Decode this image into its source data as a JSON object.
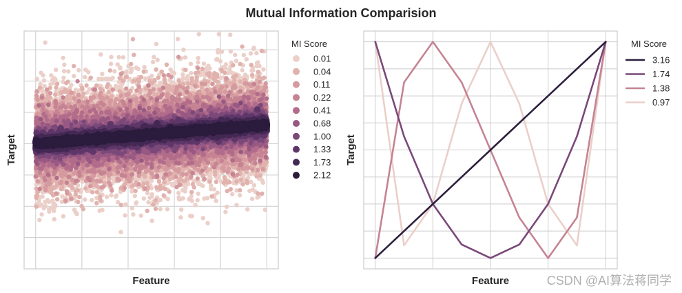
{
  "figure": {
    "title": "Mutual Information Comparision",
    "watermark": "CSDN @AI算法蒋同学"
  },
  "chart_data": [
    {
      "type": "scatter",
      "xlabel": "Feature",
      "ylabel": "Target",
      "xlim": [
        -0.05,
        1.05
      ],
      "ylim": [
        -2.0,
        1.8
      ],
      "grid": true,
      "legend_position": "right",
      "legend_title": "MI Score",
      "trend": {
        "x": [
          0,
          1
        ],
        "y": [
          0,
          0.3
        ]
      },
      "point_count": 5000,
      "series": [
        {
          "label": "0.01",
          "noise_sd": 0.45,
          "color": "#ebcfc9"
        },
        {
          "label": "0.04",
          "noise_sd": 0.36,
          "color": "#e1b2ad"
        },
        {
          "label": "0.11",
          "noise_sd": 0.28,
          "color": "#d59a9f"
        },
        {
          "label": "0.22",
          "noise_sd": 0.22,
          "color": "#c58393"
        },
        {
          "label": "0.41",
          "noise_sd": 0.17,
          "color": "#b26c8b"
        },
        {
          "label": "0.68",
          "noise_sd": 0.12,
          "color": "#975883"
        },
        {
          "label": "1.00",
          "noise_sd": 0.09,
          "color": "#7a4879"
        },
        {
          "label": "1.33",
          "noise_sd": 0.06,
          "color": "#5e3668"
        },
        {
          "label": "1.73",
          "noise_sd": 0.04,
          "color": "#432853"
        },
        {
          "label": "2.12",
          "noise_sd": 0.02,
          "color": "#2b1b3c"
        }
      ]
    },
    {
      "type": "line",
      "xlabel": "Feature",
      "ylabel": "Target",
      "xlim": [
        -0.05,
        1.05
      ],
      "ylim": [
        -0.05,
        1.05
      ],
      "grid": true,
      "legend_position": "right",
      "legend_title": "MI Score",
      "series": [
        {
          "name": "3.16",
          "color": "#2d1e3e",
          "x": [
            0,
            0.25,
            0.5,
            0.75,
            1
          ],
          "y": [
            0,
            0.25,
            0.5,
            0.75,
            1
          ]
        },
        {
          "name": "1.74",
          "color": "#7a4879",
          "x": [
            0,
            0.125,
            0.25,
            0.375,
            0.5,
            0.625,
            0.75,
            0.875,
            1
          ],
          "y": [
            1,
            0.5625,
            0.25,
            0.0625,
            0,
            0.0625,
            0.25,
            0.5625,
            1
          ]
        },
        {
          "name": "1.38",
          "color": "#c58393",
          "x": [
            0,
            0.125,
            0.25,
            0.375,
            0.5,
            0.625,
            0.75,
            0.875,
            1
          ],
          "y": [
            0,
            0.8125,
            1,
            0.8125,
            0.5,
            0.1875,
            0,
            0.1875,
            1
          ]
        },
        {
          "name": "0.97",
          "color": "#ebcfc9",
          "x": [
            0,
            0.125,
            0.25,
            0.375,
            0.5,
            0.625,
            0.75,
            0.875,
            1
          ],
          "y": [
            1,
            0.0586,
            0.25,
            0.7148,
            1,
            0.7148,
            0.25,
            0.0586,
            1
          ]
        }
      ]
    }
  ]
}
